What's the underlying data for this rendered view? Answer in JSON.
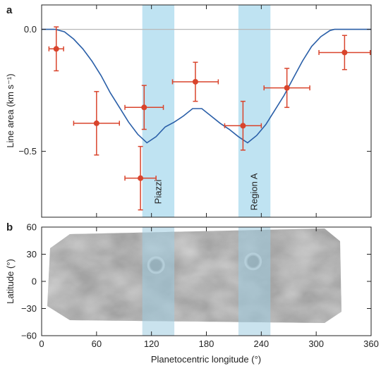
{
  "panel_a_letter": "a",
  "panel_b_letter": "b",
  "chart_data": [
    {
      "type": "scatter",
      "panel": "a",
      "xlabel": "",
      "ylabel": "Line area (km s⁻¹)",
      "xlim": [
        0,
        360
      ],
      "ylim": [
        -0.77,
        0.1
      ],
      "yticks": [
        0.0,
        -0.5
      ],
      "ytick_labels": [
        "0.0",
        "−0.5"
      ],
      "grid": false,
      "regions": [
        {
          "label": "Piazzi",
          "x": [
            110,
            145
          ],
          "color": "#bfe3f2"
        },
        {
          "label": "Region A",
          "x": [
            215,
            250
          ],
          "color": "#bfe3f2"
        }
      ],
      "zero_line": 0.0,
      "series": [
        {
          "kind": "points-with-errors",
          "color": "#d9442c",
          "points": [
            {
              "x": 16,
              "y": -0.08,
              "xerr": 8,
              "yerr": 0.09
            },
            {
              "x": 60,
              "y": -0.385,
              "xerr": 25,
              "yerr": 0.13
            },
            {
              "x": 112,
              "y": -0.32,
              "xerr": 21,
              "yerr": 0.09
            },
            {
              "x": 108,
              "y": -0.61,
              "xerr": 17,
              "yerr": 0.13
            },
            {
              "x": 168,
              "y": -0.215,
              "xerr": 25,
              "yerr": 0.08
            },
            {
              "x": 220,
              "y": -0.395,
              "xerr": 20,
              "yerr": 0.1
            },
            {
              "x": 268,
              "y": -0.24,
              "xerr": 25,
              "yerr": 0.08
            },
            {
              "x": 331,
              "y": -0.095,
              "xerr": 28,
              "yerr": 0.07
            }
          ]
        },
        {
          "kind": "line",
          "color": "#2a5fa8",
          "x": [
            0,
            15,
            25,
            35,
            45,
            55,
            65,
            75,
            85,
            95,
            105,
            115,
            125,
            135,
            145,
            155,
            165,
            175,
            185,
            195,
            205,
            215,
            225,
            235,
            245,
            255,
            265,
            275,
            285,
            295,
            305,
            315,
            320,
            330,
            345,
            360
          ],
          "y": [
            0,
            0,
            -0.01,
            -0.04,
            -0.08,
            -0.13,
            -0.19,
            -0.26,
            -0.32,
            -0.38,
            -0.43,
            -0.465,
            -0.44,
            -0.4,
            -0.38,
            -0.355,
            -0.325,
            -0.325,
            -0.355,
            -0.385,
            -0.41,
            -0.44,
            -0.465,
            -0.435,
            -0.39,
            -0.33,
            -0.27,
            -0.2,
            -0.13,
            -0.07,
            -0.03,
            -0.005,
            0,
            0,
            0,
            0
          ]
        }
      ]
    },
    {
      "type": "heatmap",
      "panel": "b",
      "xlabel": "Planetocentric longitude (°)",
      "ylabel": "Latitude (°)",
      "xlim": [
        0,
        360
      ],
      "ylim": [
        -60,
        60
      ],
      "xticks": [
        0,
        60,
        120,
        180,
        240,
        300,
        360
      ],
      "xtick_labels": [
        "0",
        "60",
        "120",
        "180",
        "240",
        "300",
        "360"
      ],
      "yticks": [
        60,
        30,
        0,
        -30,
        -60
      ],
      "ytick_labels": [
        "60",
        "30",
        "0",
        "−30",
        "−60"
      ],
      "regions": [
        {
          "x": [
            110,
            145
          ],
          "color": "#9fcce0"
        },
        {
          "x": [
            215,
            250
          ],
          "color": "#9fcce0"
        }
      ],
      "features": [
        {
          "x": 125,
          "y": 18,
          "r": 8
        },
        {
          "x": 231,
          "y": 22,
          "r": 8
        }
      ]
    }
  ]
}
